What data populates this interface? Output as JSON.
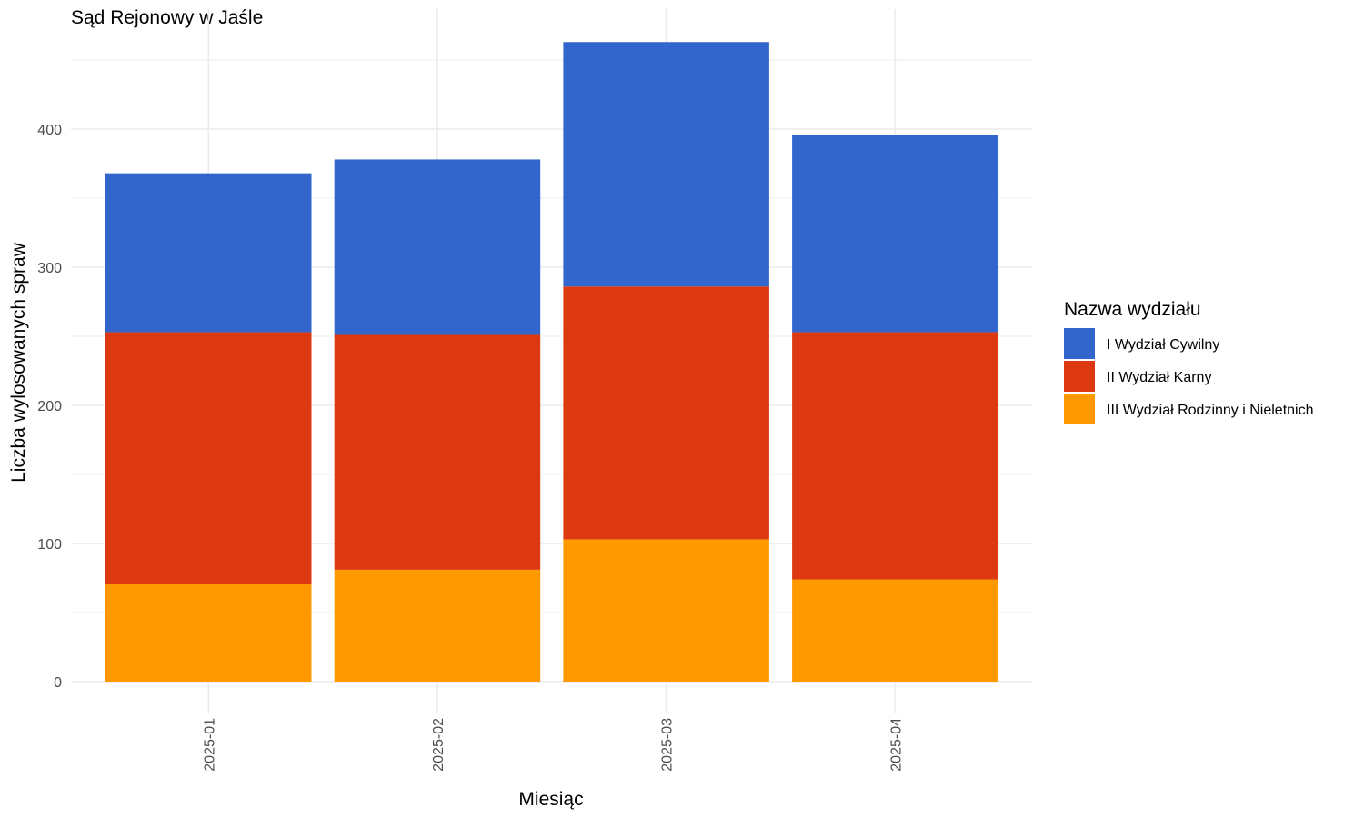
{
  "chart_data": {
    "type": "bar",
    "stacked": true,
    "title": "Sąd Rejonowy w Jaśle",
    "xlabel": "Miesiąc",
    "ylabel": "Liczba wylosowanych spraw",
    "categories": [
      "2025-01",
      "2025-02",
      "2025-03",
      "2025-04"
    ],
    "ylim": [
      0,
      485
    ],
    "yticks": [
      0,
      100,
      200,
      300,
      400
    ],
    "grid": true,
    "legend_title": "Nazwa wydziału",
    "legend_position": "right",
    "series": [
      {
        "name": "III Wydział Rodzinny i Nieletnich",
        "color": "#FF9900",
        "values": [
          71,
          81,
          103,
          74
        ]
      },
      {
        "name": "II Wydział Karny",
        "color": "#DC3912",
        "values": [
          182,
          170,
          183,
          179
        ]
      },
      {
        "name": "I Wydział Cywilny",
        "color": "#3366CC",
        "values": [
          115,
          127,
          177,
          143
        ]
      }
    ],
    "legend_order": [
      "I Wydział Cywilny",
      "II Wydział Karny",
      "III Wydział Rodzinny i Nieletnich"
    ]
  }
}
